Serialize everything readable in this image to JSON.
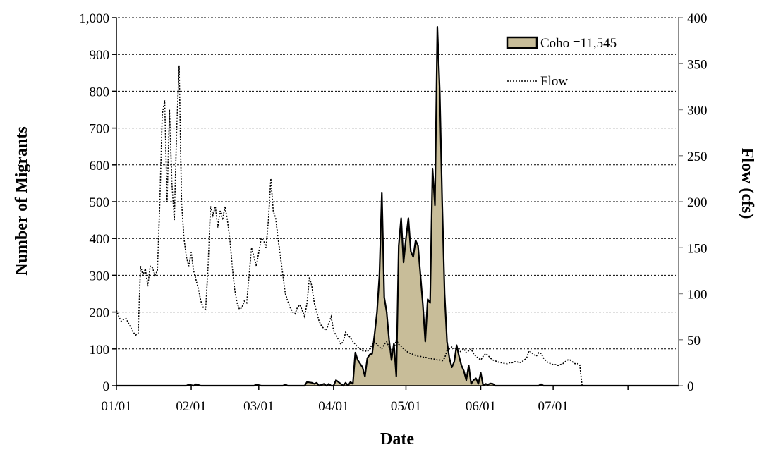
{
  "chart_data": {
    "type": "area",
    "xlabel": "Date",
    "ylabel": "Number of Migrants",
    "y2label": "Flow (cfs)",
    "x_domain_day_of_year": [
      1,
      234
    ],
    "x_ticks": [
      {
        "label": "01/01",
        "day": 1
      },
      {
        "label": "02/01",
        "day": 32
      },
      {
        "label": "03/01",
        "day": 60
      },
      {
        "label": "04/01",
        "day": 91
      },
      {
        "label": "05/01",
        "day": 121
      },
      {
        "label": "06/01",
        "day": 152
      },
      {
        "label": "07/01",
        "day": 182
      }
    ],
    "ylim": [
      0,
      1000
    ],
    "y_ticks": [
      {
        "label": "0",
        "value": 0
      },
      {
        "label": "100",
        "value": 100
      },
      {
        "label": "200",
        "value": 200
      },
      {
        "label": "300",
        "value": 300
      },
      {
        "label": "400",
        "value": 400
      },
      {
        "label": "500",
        "value": 500
      },
      {
        "label": "600",
        "value": 600
      },
      {
        "label": "700",
        "value": 700
      },
      {
        "label": "800",
        "value": 800
      },
      {
        "label": "900",
        "value": 900
      },
      {
        "label": "1,000",
        "value": 1000
      }
    ],
    "y2lim": [
      0,
      400
    ],
    "y2_ticks": [
      {
        "label": "0",
        "value": 0
      },
      {
        "label": "50",
        "value": 50
      },
      {
        "label": "100",
        "value": 100
      },
      {
        "label": "150",
        "value": 150
      },
      {
        "label": "200",
        "value": 200
      },
      {
        "label": "250",
        "value": 250
      },
      {
        "label": "300",
        "value": 300
      },
      {
        "label": "350",
        "value": 350
      },
      {
        "label": "400",
        "value": 400
      }
    ],
    "grid": "horizontal",
    "legend_position": "top-right",
    "series": [
      {
        "name": "Coho =11,545",
        "kind": "area",
        "axis": "left",
        "color": "#c8bd99",
        "points": [
          [
            1,
            0
          ],
          [
            30,
            0
          ],
          [
            31,
            3
          ],
          [
            33,
            0
          ],
          [
            34,
            4
          ],
          [
            36,
            0
          ],
          [
            58,
            0
          ],
          [
            59,
            3
          ],
          [
            61,
            0
          ],
          [
            70,
            0
          ],
          [
            71,
            3
          ],
          [
            72,
            0
          ],
          [
            79,
            0
          ],
          [
            80,
            10
          ],
          [
            82,
            8
          ],
          [
            83,
            5
          ],
          [
            84,
            8
          ],
          [
            85,
            0
          ],
          [
            87,
            5
          ],
          [
            88,
            0
          ],
          [
            89,
            5
          ],
          [
            90,
            0
          ],
          [
            91,
            0
          ],
          [
            92,
            15
          ],
          [
            94,
            5
          ],
          [
            95,
            0
          ],
          [
            96,
            8
          ],
          [
            97,
            0
          ],
          [
            98,
            10
          ],
          [
            99,
            5
          ],
          [
            100,
            90
          ],
          [
            101,
            70
          ],
          [
            102,
            60
          ],
          [
            103,
            50
          ],
          [
            104,
            25
          ],
          [
            105,
            75
          ],
          [
            106,
            85
          ],
          [
            107,
            87
          ],
          [
            108,
            140
          ],
          [
            109,
            200
          ],
          [
            110,
            300
          ],
          [
            111,
            525
          ],
          [
            112,
            240
          ],
          [
            113,
            200
          ],
          [
            114,
            125
          ],
          [
            115,
            70
          ],
          [
            116,
            115
          ],
          [
            117,
            25
          ],
          [
            118,
            380
          ],
          [
            119,
            455
          ],
          [
            120,
            335
          ],
          [
            121,
            400
          ],
          [
            122,
            455
          ],
          [
            123,
            365
          ],
          [
            124,
            350
          ],
          [
            125,
            395
          ],
          [
            126,
            380
          ],
          [
            127,
            300
          ],
          [
            128,
            220
          ],
          [
            129,
            120
          ],
          [
            130,
            235
          ],
          [
            131,
            225
          ],
          [
            132,
            590
          ],
          [
            133,
            490
          ],
          [
            134,
            975
          ],
          [
            135,
            800
          ],
          [
            136,
            500
          ],
          [
            137,
            250
          ],
          [
            138,
            120
          ],
          [
            139,
            75
          ],
          [
            140,
            50
          ],
          [
            141,
            65
          ],
          [
            142,
            110
          ],
          [
            143,
            80
          ],
          [
            144,
            55
          ],
          [
            145,
            40
          ],
          [
            146,
            15
          ],
          [
            147,
            55
          ],
          [
            148,
            5
          ],
          [
            149,
            15
          ],
          [
            150,
            20
          ],
          [
            151,
            5
          ],
          [
            152,
            35
          ],
          [
            153,
            0
          ],
          [
            154,
            5
          ],
          [
            155,
            3
          ],
          [
            156,
            6
          ],
          [
            157,
            5
          ],
          [
            158,
            0
          ],
          [
            176,
            0
          ],
          [
            177,
            4
          ],
          [
            178,
            0
          ],
          [
            234,
            0
          ]
        ]
      },
      {
        "name": "Flow",
        "kind": "line",
        "axis": "right",
        "style": "dotted",
        "color": "#000000",
        "points": [
          [
            1,
            82
          ],
          [
            2,
            75
          ],
          [
            3,
            70
          ],
          [
            4,
            72
          ],
          [
            5,
            73
          ],
          [
            6,
            68
          ],
          [
            7,
            63
          ],
          [
            8,
            58
          ],
          [
            9,
            55
          ],
          [
            10,
            57
          ],
          [
            11,
            130
          ],
          [
            12,
            120
          ],
          [
            13,
            127
          ],
          [
            14,
            108
          ],
          [
            15,
            130
          ],
          [
            16,
            128
          ],
          [
            17,
            120
          ],
          [
            18,
            125
          ],
          [
            19,
            200
          ],
          [
            20,
            295
          ],
          [
            21,
            310
          ],
          [
            22,
            200
          ],
          [
            23,
            300
          ],
          [
            24,
            220
          ],
          [
            25,
            180
          ],
          [
            26,
            280
          ],
          [
            27,
            348
          ],
          [
            28,
            200
          ],
          [
            29,
            160
          ],
          [
            30,
            140
          ],
          [
            31,
            130
          ],
          [
            32,
            145
          ],
          [
            33,
            125
          ],
          [
            34,
            115
          ],
          [
            35,
            105
          ],
          [
            36,
            92
          ],
          [
            37,
            85
          ],
          [
            38,
            83
          ],
          [
            39,
            130
          ],
          [
            40,
            195
          ],
          [
            41,
            185
          ],
          [
            42,
            195
          ],
          [
            43,
            172
          ],
          [
            44,
            190
          ],
          [
            45,
            180
          ],
          [
            46,
            195
          ],
          [
            47,
            180
          ],
          [
            48,
            160
          ],
          [
            49,
            130
          ],
          [
            50,
            105
          ],
          [
            51,
            90
          ],
          [
            52,
            83
          ],
          [
            53,
            85
          ],
          [
            54,
            92
          ],
          [
            55,
            90
          ],
          [
            56,
            120
          ],
          [
            57,
            150
          ],
          [
            58,
            140
          ],
          [
            59,
            130
          ],
          [
            60,
            145
          ],
          [
            61,
            160
          ],
          [
            62,
            158
          ],
          [
            63,
            150
          ],
          [
            64,
            180
          ],
          [
            65,
            225
          ],
          [
            66,
            190
          ],
          [
            67,
            182
          ],
          [
            68,
            160
          ],
          [
            69,
            140
          ],
          [
            70,
            120
          ],
          [
            71,
            100
          ],
          [
            72,
            92
          ],
          [
            73,
            85
          ],
          [
            74,
            80
          ],
          [
            75,
            78
          ],
          [
            76,
            85
          ],
          [
            77,
            88
          ],
          [
            78,
            82
          ],
          [
            79,
            75
          ],
          [
            80,
            90
          ],
          [
            81,
            118
          ],
          [
            82,
            108
          ],
          [
            83,
            90
          ],
          [
            84,
            80
          ],
          [
            85,
            70
          ],
          [
            86,
            65
          ],
          [
            87,
            62
          ],
          [
            88,
            60
          ],
          [
            89,
            68
          ],
          [
            90,
            75
          ],
          [
            91,
            60
          ],
          [
            92,
            55
          ],
          [
            93,
            50
          ],
          [
            94,
            45
          ],
          [
            95,
            48
          ],
          [
            96,
            58
          ],
          [
            97,
            55
          ],
          [
            98,
            52
          ],
          [
            99,
            48
          ],
          [
            100,
            45
          ],
          [
            101,
            42
          ],
          [
            102,
            40
          ],
          [
            103,
            38
          ],
          [
            104,
            38
          ],
          [
            105,
            37
          ],
          [
            106,
            40
          ],
          [
            107,
            45
          ],
          [
            108,
            48
          ],
          [
            109,
            45
          ],
          [
            110,
            42
          ],
          [
            111,
            40
          ],
          [
            112,
            45
          ],
          [
            113,
            48
          ],
          [
            114,
            42
          ],
          [
            115,
            38
          ],
          [
            116,
            40
          ],
          [
            117,
            50
          ],
          [
            118,
            45
          ],
          [
            119,
            43
          ],
          [
            120,
            40
          ],
          [
            121,
            38
          ],
          [
            122,
            36
          ],
          [
            123,
            35
          ],
          [
            124,
            34
          ],
          [
            125,
            33
          ],
          [
            126,
            32
          ],
          [
            127,
            32
          ],
          [
            128,
            31
          ],
          [
            129,
            31
          ],
          [
            130,
            30
          ],
          [
            131,
            30
          ],
          [
            132,
            29
          ],
          [
            133,
            29
          ],
          [
            134,
            28
          ],
          [
            135,
            28
          ],
          [
            136,
            27
          ],
          [
            137,
            30
          ],
          [
            138,
            38
          ],
          [
            139,
            40
          ],
          [
            140,
            42
          ],
          [
            141,
            40
          ],
          [
            142,
            38
          ],
          [
            143,
            36
          ],
          [
            144,
            38
          ],
          [
            145,
            40
          ],
          [
            146,
            36
          ],
          [
            147,
            38
          ],
          [
            148,
            40
          ],
          [
            149,
            35
          ],
          [
            150,
            32
          ],
          [
            151,
            30
          ],
          [
            152,
            28
          ],
          [
            153,
            32
          ],
          [
            154,
            35
          ],
          [
            155,
            33
          ],
          [
            156,
            30
          ],
          [
            157,
            28
          ],
          [
            158,
            27
          ],
          [
            159,
            26
          ],
          [
            160,
            25
          ],
          [
            161,
            25
          ],
          [
            162,
            24
          ],
          [
            163,
            24
          ],
          [
            164,
            25
          ],
          [
            165,
            25
          ],
          [
            166,
            26
          ],
          [
            167,
            26
          ],
          [
            168,
            25
          ],
          [
            169,
            26
          ],
          [
            170,
            28
          ],
          [
            171,
            30
          ],
          [
            172,
            38
          ],
          [
            173,
            36
          ],
          [
            174,
            34
          ],
          [
            175,
            32
          ],
          [
            176,
            36
          ],
          [
            177,
            35
          ],
          [
            178,
            30
          ],
          [
            179,
            27
          ],
          [
            180,
            25
          ],
          [
            181,
            24
          ],
          [
            182,
            23
          ],
          [
            183,
            23
          ],
          [
            184,
            22
          ],
          [
            185,
            23
          ],
          [
            186,
            24
          ],
          [
            187,
            26
          ],
          [
            188,
            28
          ],
          [
            189,
            28
          ],
          [
            190,
            26
          ],
          [
            191,
            24
          ],
          [
            192,
            24
          ],
          [
            193,
            23
          ],
          [
            194,
            0
          ]
        ]
      }
    ]
  }
}
